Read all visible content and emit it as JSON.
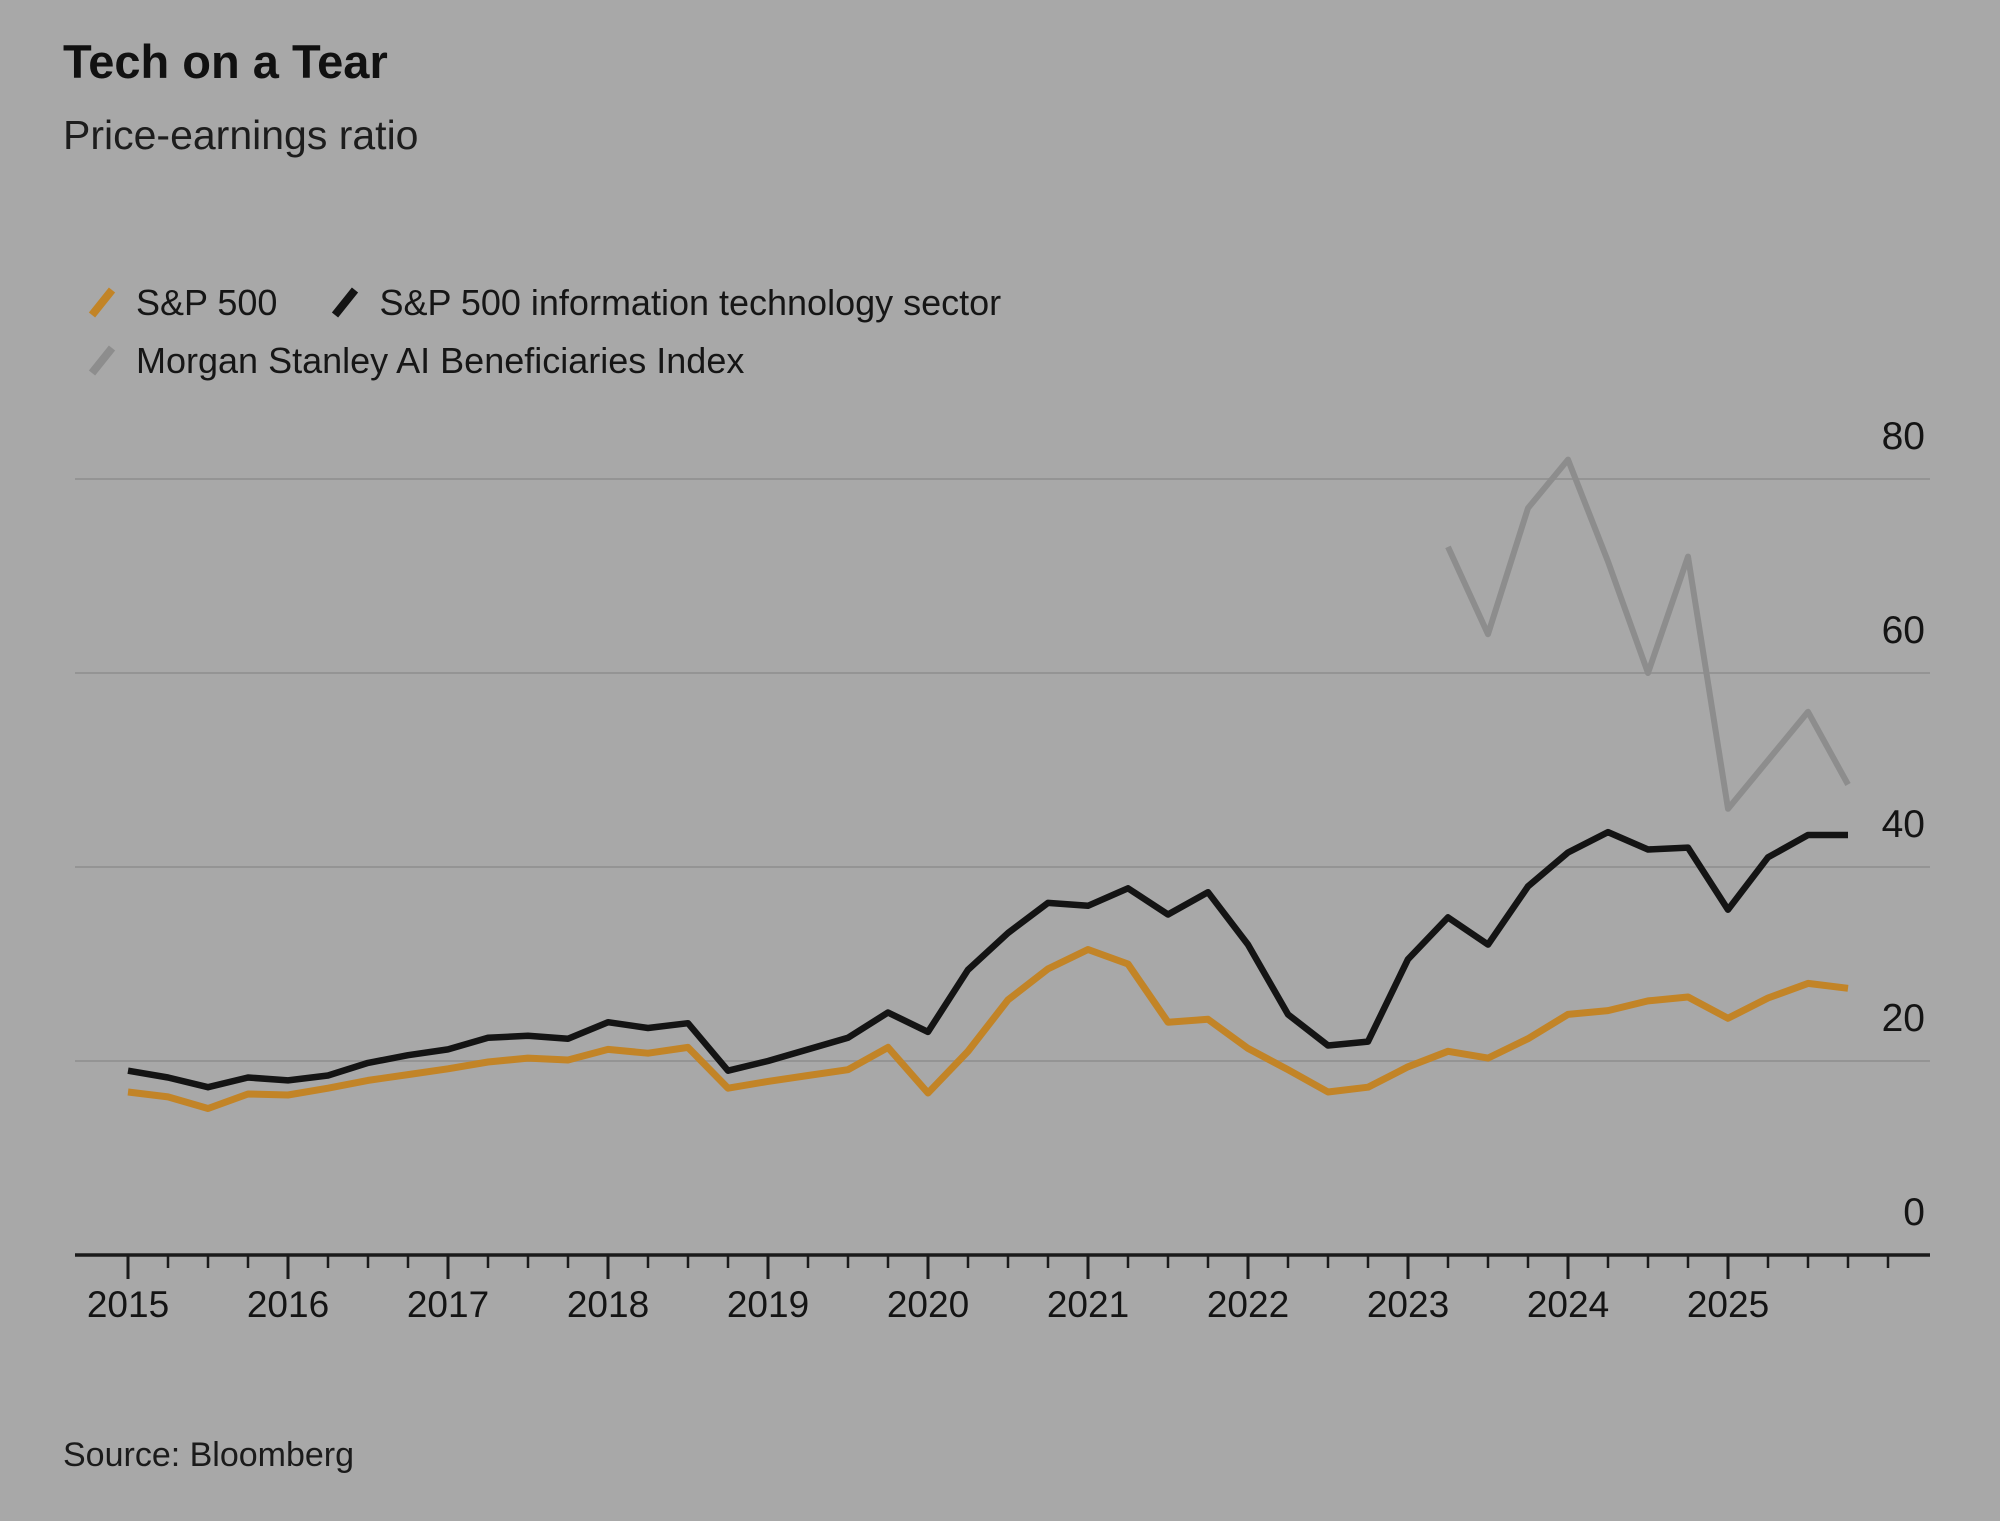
{
  "header": {
    "title": "Tech on a Tear",
    "subtitle": "Price-earnings ratio"
  },
  "source": "Source: Bloomberg",
  "colors": {
    "background": "#a8a8a8",
    "text": "#161616",
    "axis": "#1a1a1a",
    "gridline": "#949494",
    "orange": "#c28427",
    "black": "#141414",
    "gray": "#8d8d8d"
  },
  "chart_data": {
    "type": "line",
    "title": "Tech on a Tear",
    "subtitle": "Price-earnings ratio",
    "ylabel": "",
    "xlabel": "",
    "grid": "horizontal",
    "legend_position": "top-left",
    "x_axis": {
      "year_labels": [
        2015,
        2016,
        2017,
        2018,
        2019,
        2020,
        2021,
        2022,
        2023,
        2024,
        2025
      ],
      "minor_ticks_per_year": 4,
      "range": [
        2015.0,
        2026.1
      ]
    },
    "y_axis": {
      "ticks": [
        0,
        20,
        40,
        60,
        80
      ],
      "range": [
        0,
        88
      ]
    },
    "x_step_years": 0.25,
    "series": [
      {
        "id": "ms-ai",
        "name": "Morgan Stanley AI Beneficiaries Index",
        "color_key": "gray",
        "start_year": 2023.25,
        "values": [
          73,
          64,
          77,
          82,
          71.5,
          60,
          72,
          46,
          51,
          56,
          48.5
        ]
      },
      {
        "id": "sp500",
        "name": "S&P 500",
        "color_key": "orange",
        "start_year": 2015.0,
        "values": [
          16.8,
          16.3,
          15.1,
          16.6,
          16.5,
          17.2,
          18.0,
          18.6,
          19.2,
          19.9,
          20.3,
          20.1,
          21.2,
          20.8,
          21.4,
          17.2,
          17.9,
          18.5,
          19.1,
          21.4,
          16.7,
          21.0,
          26.3,
          29.5,
          31.5,
          30.0,
          24.0,
          24.3,
          21.3,
          19.1,
          16.8,
          17.3,
          19.4,
          21.0,
          20.3,
          22.3,
          24.8,
          25.2,
          26.2,
          26.6,
          24.4,
          26.5,
          28.0,
          27.5
        ]
      },
      {
        "id": "sp500-it",
        "name": "S&P 500 information technology sector",
        "color_key": "black",
        "start_year": 2015.0,
        "values": [
          19.0,
          18.3,
          17.3,
          18.3,
          18.0,
          18.5,
          19.8,
          20.6,
          21.2,
          22.4,
          22.6,
          22.3,
          24.0,
          23.4,
          23.9,
          19.0,
          20.0,
          21.2,
          22.4,
          25.0,
          23.0,
          29.4,
          33.2,
          36.3,
          36.0,
          37.8,
          35.1,
          37.4,
          32.0,
          24.8,
          21.6,
          22.0,
          30.5,
          34.8,
          32.0,
          38.0,
          41.5,
          43.6,
          41.8,
          42.0,
          35.6,
          41.0,
          43.3,
          43.3
        ]
      }
    ],
    "legend_order": [
      "sp500",
      "sp500-it",
      "ms-ai"
    ]
  }
}
